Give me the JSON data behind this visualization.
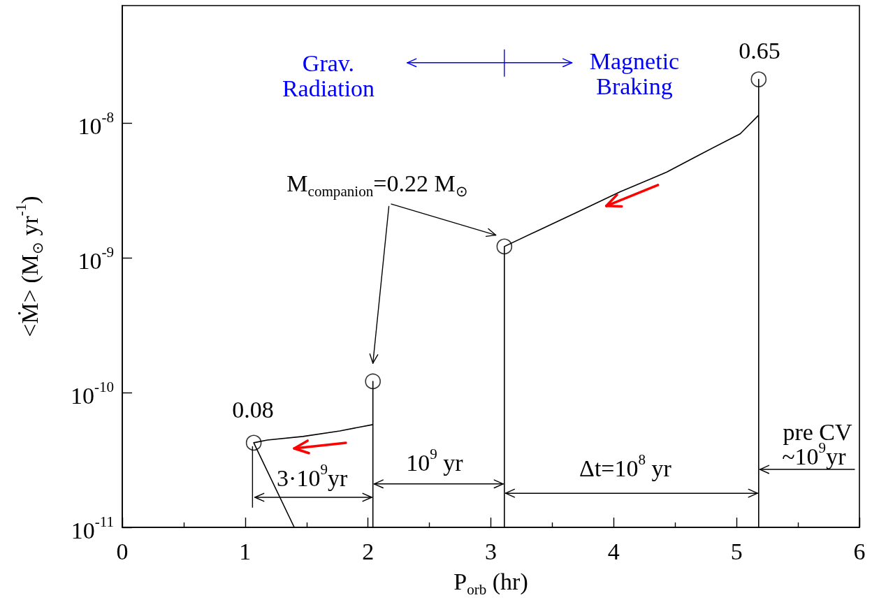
{
  "chart_data": {
    "type": "line",
    "xlabel": "P$_{orb}$ (hr)",
    "ylabel": "<Ṁ> (M$_{⊙}$ yr$^{-1}$)",
    "log": "y",
    "grid": false,
    "xlim": [
      0,
      6
    ],
    "xticks": [
      0,
      1,
      2,
      3,
      4,
      5,
      6
    ],
    "ylim": [
      1e-11,
      7.4e-08
    ],
    "yticks": [
      {
        "value": 1e-11,
        "label": "10$^{-11}$"
      },
      {
        "value": 1e-10,
        "label": "10$^{-10}$"
      },
      {
        "value": 1e-09,
        "label": "10$^{-9}$"
      },
      {
        "value": 1e-08,
        "label": "10$^{-8}$"
      }
    ],
    "series": [
      {
        "type": "line",
        "color": "#000000",
        "marker": "none",
        "x": [
          5.18,
          5.18,
          5.18,
          5.03,
          4.7,
          4.43,
          4.05,
          3.7,
          3.41,
          3.11,
          3.11
        ],
        "values": [
          1e-11,
          2.1e-08,
          1.14e-08,
          8.3e-09,
          5.8e-09,
          4.3e-09,
          3.07e-09,
          2.17e-09,
          1.63e-09,
          1.21e-09,
          1e-11
        ]
      },
      {
        "type": "line",
        "color": "#000000",
        "marker": "none",
        "x": [
          2.04,
          2.04,
          2.04,
          1.77,
          1.47,
          1.18,
          1.07,
          1.4
        ],
        "values": [
          1e-11,
          1.21e-10,
          5.78e-11,
          5.19e-11,
          4.72e-11,
          4.44e-11,
          4.24e-11,
          1e-11
        ]
      },
      {
        "type": "scatter",
        "color": "#000000",
        "marker": "circle",
        "x": [
          5.18,
          3.11,
          2.04,
          1.07
        ],
        "values": [
          2.1e-08,
          1.21e-09,
          1.21e-10,
          4.24e-11
        ]
      }
    ],
    "annotations": [
      "Grav.\nRadiation",
      "Magnetic\nBraking",
      "0.65",
      "0.08",
      "M$_{companion}$=0.22 M$_{⊙}$",
      {
        "text": "3·10$^{9}$yr",
        "x": 2.04,
        "y": 1.67e-11
      },
      {
        "text": "10$^{9}$ yr",
        "x": 3.11,
        "y": 2.1e-11
      },
      "Δt=10$^{8}$ yr",
      "pre CV",
      {
        "text": "~10$^{9}$yr",
        "x": 5.18,
        "y": 2.69e-11
      }
    ]
  }
}
